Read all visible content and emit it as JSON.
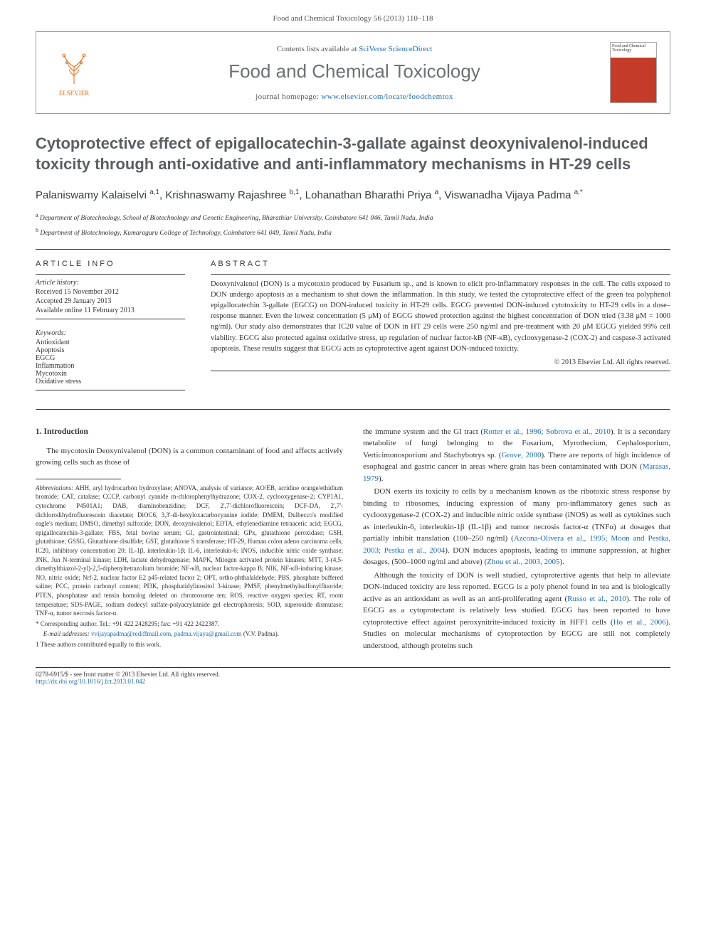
{
  "journal_ref": "Food and Chemical Toxicology 56 (2013) 110–118",
  "header": {
    "contents_prefix": "Contents lists available at ",
    "contents_link": "SciVerse ScienceDirect",
    "journal_name": "Food and Chemical Toxicology",
    "homepage_prefix": "journal homepage: ",
    "homepage_url": "www.elsevier.com/locate/foodchemtox",
    "elsevier_label": "ELSEVIER",
    "cover_text": "Food and Chemical Toxicology"
  },
  "title": "Cytoprotective effect of epigallocatechin-3-gallate against deoxynivalenol-induced toxicity through anti-oxidative and anti-inflammatory mechanisms in HT-29 cells",
  "authors_html": "Palaniswamy Kalaiselvi <sup>a,1</sup>, Krishnaswamy Rajashree <sup>b,1</sup>, Lohanathan Bharathi Priya <sup>a</sup>, Viswanadha Vijaya Padma <sup>a,*</sup>",
  "affiliations": [
    "a Department of Biotechnology, School of Biotechnology and Genetic Engineering, Bharathiar University, Coimbatore 641 046, Tamil Nadu, India",
    "b Department of Biotechnology, Kumaraguru College of Technology, Coimbatore 641 049, Tamil Nadu, India"
  ],
  "article_info": {
    "label": "ARTICLE INFO",
    "history_label": "Article history:",
    "history": [
      "Received 15 November 2012",
      "Accepted 29 January 2013",
      "Available online 11 February 2013"
    ],
    "keywords_label": "Keywords:",
    "keywords": [
      "Antioxidant",
      "Apoptosis",
      "EGCG",
      "Inflammation",
      "Mycotoxin",
      "Oxidative stress"
    ]
  },
  "abstract": {
    "label": "ABSTRACT",
    "text": "Deoxynivalenol (DON) is a mycotoxin produced by Fusarium sp., and is known to elicit pro-inflammatory responses in the cell. The cells exposed to DON undergo apoptosis as a mechanism to shut down the inflammation. In this study, we tested the cytoprotective effect of the green tea polyphenol epigallocatechin 3-gallate (EGCG) on DON-induced toxicity in HT-29 cells. EGCG prevented DON-induced cytotoxicity to HT-29 cells in a dose–response manner. Even the lowest concentration (5 μM) of EGCG showed protection against the highest concentration of DON tried (3.38 μM = 1000 ng/ml). Our study also demonstrates that IC20 value of DON in HT 29 cells were 250 ng/ml and pre-treatment with 20 μM EGCG yielded 99% cell viability. EGCG also protected against oxidative stress, up regulation of nuclear factor-kB (NF-κB), cyclooxygenase-2 (COX-2) and caspase-3 activated apoptosis. These results suggest that EGCG acts as cytoprotective agent against DON-induced toxicity.",
    "copyright": "© 2013 Elsevier Ltd. All rights reserved."
  },
  "body": {
    "section_heading": "1. Introduction",
    "left_paragraphs": [
      "The mycotoxin Deoxynivalenol (DON) is a common contaminant of food and affects actively growing cells such as those of"
    ],
    "right_paragraphs": [
      "the immune system and the GI tract (Rotter et al., 1996; Sobrova et al., 2010). It is a secondary metabolite of fungi belonging to the Fusarium, Myrothecium, Cephalosporium, Verticimonosporium and Stachybotrys sp. (Grove, 2000). There are reports of high incidence of esophageal and gastric cancer in areas where grain has been contaminated with DON (Marasas, 1979).",
      "DON exerts its toxicity to cells by a mechanism known as the ribotoxic stress response by binding to ribosomes, inducing expression of many pro-inflammatory genes such as cyclooxygenase-2 (COX-2) and inducible nitric oxide synthase (iNOS) as well as cytokines such as interleukin-6, interleukin-1β (IL-1β) and tumor necrosis factor-α (TNFα) at dosages that partially inhibit translation (100–250 ng/ml) (Azcona-Olivera et al., 1995; Moon and Pestka, 2003; Pestka et al., 2004). DON induces apoptosis, leading to immune suppression, at higher dosages, (500–1000 ng/ml and above) (Zhou et al., 2003, 2005).",
      "Although the toxicity of DON is well studied, cytoprotective agents that help to alleviate DON-induced toxicity are less reported. EGCG is a poly phenol found in tea and is biologically active as an antioxidant as well as an anti-proliferating agent (Russo et al., 2010). The role of EGCG as a cytoprotectant is relatively less studied. EGCG has been reported to have cytoprotective effect against peroxynitrite-induced toxicity in HFF1 cells (Ho et al., 2006). Studies on molecular mechanisms of cytoprotection by EGCG are still not completely understood, although proteins such"
    ]
  },
  "footnotes": {
    "abbrev_label": "Abbreviations:",
    "abbrev_text": " AHH, aryl hydrocarbon hydroxylase; ANOVA, analysis of variance; AO/EB, acridine orange/ethidium bromide; CAT, catalase; CCCP, carbonyl cyanide m-chlorophenylhydrazone; COX-2, cyclooxygenase-2; CYP1A1, cytochrome P4501A1; DAB, diaminobenzidine; DCF, 2',7'-dichlorofluorescein; DCF-DA, 2',7'-dichlorodihydrofluorescein diacetate; DiOC6, 3,3'-di-hexyloxacarbocyanine iodide; DMEM, Dulbecco's modified eagle's medium; DMSO, dimethyl sulfoxide; DON, deoxynivalenol; EDTA, ethylenediamine tetraacetic acid; EGCG, epigallocatechin-3-gallate; FBS, fetal bovine serum; GI, gastrointestinal; GPx, glutathione peroxidase; GSH, glutathione; GSSG, Glutathione disulfide; GST, glutathione S transferase; HT-29, Human colon adeno carcinoma cells; IC20, inhibitory concentration 20; IL-1β, interleukin-1β; IL-6, interleukin-6; iNOS, inducible nitric oxide synthase; JNK, Jun N-terminal kinase; LDH, lactate dehydrogenase; MAPK, Mitogen activated protein kinases; MTT, 3-(4,5-dimethylthiazol-2-yl)-2,5-diphenyltetrazolium bromide; NF-κB, nuclear factor-kappa B; NIK, NF-κB-inducing kinase; NO, nitric oxide; Nrf-2, nuclear factor E2 p45-related factor 2; OPT, ortho-phthalaldehyde; PBS, phosphate buffered saline; PCC, protein carbonyl content; PI3K, phosphatidylinositol 3-kinase; PMSF, phenylmethylsulfonylfluoride; PTEN, phosphatase and tensin homolog deleted on chromosome ten; ROS, reactive oxygen species; RT, room temperature; SDS-PAGE, sodium dodecyl sulfate-polyacrylamide gel electrophoresis; SOD, superoxide dismutase; TNF-α, tumor necrosis factor-α.",
    "corresponding": "* Corresponding author. Tel.: +91 422 2428295; fax: +91 422 2422387.",
    "email_label": "E-mail addresses: ",
    "emails": "vvijayapadma@rediffmail.com, padma.vijaya@gmail.com",
    "email_owner": " (V.V. Padma).",
    "equal": "1 These authors contributed equally to this work."
  },
  "footer": {
    "issn": "0278-6915/$ - see front matter © 2013 Elsevier Ltd. All rights reserved.",
    "doi": "http://dx.doi.org/10.1016/j.fct.2013.01.042"
  },
  "colors": {
    "link": "#1a6bb3",
    "elsevier": "#e9711c",
    "title_gray": "#5b5f63"
  }
}
